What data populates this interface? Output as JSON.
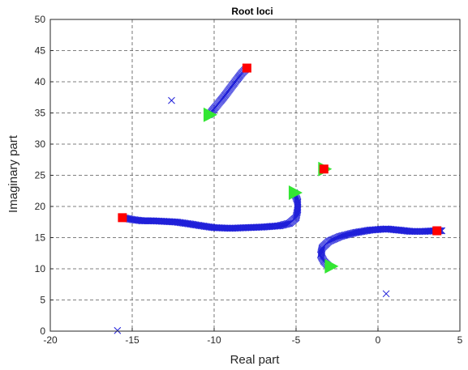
{
  "chart_data": {
    "type": "scatter",
    "title": "Root loci",
    "xlabel": "Real part",
    "ylabel": "Imaginary part",
    "xlim": [
      -20,
      5
    ],
    "ylim": [
      0,
      50
    ],
    "grid": true,
    "x_ticks": [
      -20,
      -15,
      -10,
      -5,
      0,
      5
    ],
    "y_ticks": [
      0,
      5,
      10,
      15,
      20,
      25,
      30,
      35,
      40,
      45,
      50
    ],
    "colors": {
      "locus": "#1f1fd9",
      "start": "#33e633",
      "end": "#ff0000",
      "grid": "#555555"
    },
    "series": [
      {
        "marker": "x",
        "segments": [
          {
            "points": [
              [
                -10.3,
                34.7
              ],
              [
                -9.9,
                36.0
              ],
              [
                -9.4,
                37.6
              ],
              [
                -9.0,
                39.0
              ],
              [
                -8.6,
                40.4
              ],
              [
                -8.3,
                41.4
              ],
              [
                -8.0,
                42.2
              ]
            ]
          },
          {
            "points": [
              [
                -15.6,
                18.2
              ],
              [
                -15.0,
                17.9
              ],
              [
                -14.4,
                17.7
              ],
              [
                -13.8,
                17.7
              ],
              [
                -13.0,
                17.6
              ],
              [
                -12.3,
                17.5
              ],
              [
                -11.5,
                17.2
              ],
              [
                -10.8,
                16.9
              ],
              [
                -10.0,
                16.6
              ],
              [
                -9.0,
                16.5
              ],
              [
                -8.0,
                16.6
              ],
              [
                -7.0,
                16.7
              ],
              [
                -6.0,
                16.9
              ],
              [
                -5.4,
                17.3
              ],
              [
                -5.0,
                18.2
              ],
              [
                -4.9,
                19.5
              ],
              [
                -4.9,
                20.8
              ],
              [
                -5.1,
                22.2
              ]
            ]
          },
          {
            "points": [
              [
                -3.0,
                10.4
              ],
              [
                -3.3,
                11.2
              ],
              [
                -3.5,
                12.2
              ],
              [
                -3.4,
                13.4
              ],
              [
                -3.0,
                14.4
              ],
              [
                -2.3,
                15.2
              ],
              [
                -1.4,
                15.8
              ],
              [
                -0.5,
                16.2
              ],
              [
                0.5,
                16.4
              ],
              [
                1.3,
                16.2
              ],
              [
                2.0,
                16.0
              ],
              [
                2.8,
                16.0
              ],
              [
                3.5,
                16.1
              ],
              [
                3.9,
                16.1
              ]
            ]
          }
        ],
        "isolated_points": [
          [
            -12.6,
            37.0
          ],
          [
            -15.9,
            0.1
          ],
          [
            0.5,
            6.0
          ]
        ]
      },
      {
        "marker": "triangle-right",
        "points": [
          [
            -10.3,
            34.7
          ],
          [
            -5.1,
            22.2
          ],
          [
            -3.3,
            26.0
          ],
          [
            -2.9,
            10.4
          ]
        ]
      },
      {
        "marker": "square",
        "points": [
          [
            -8.0,
            42.2
          ],
          [
            -15.6,
            18.2
          ],
          [
            -3.3,
            26.0
          ],
          [
            3.6,
            16.1
          ]
        ]
      }
    ]
  }
}
